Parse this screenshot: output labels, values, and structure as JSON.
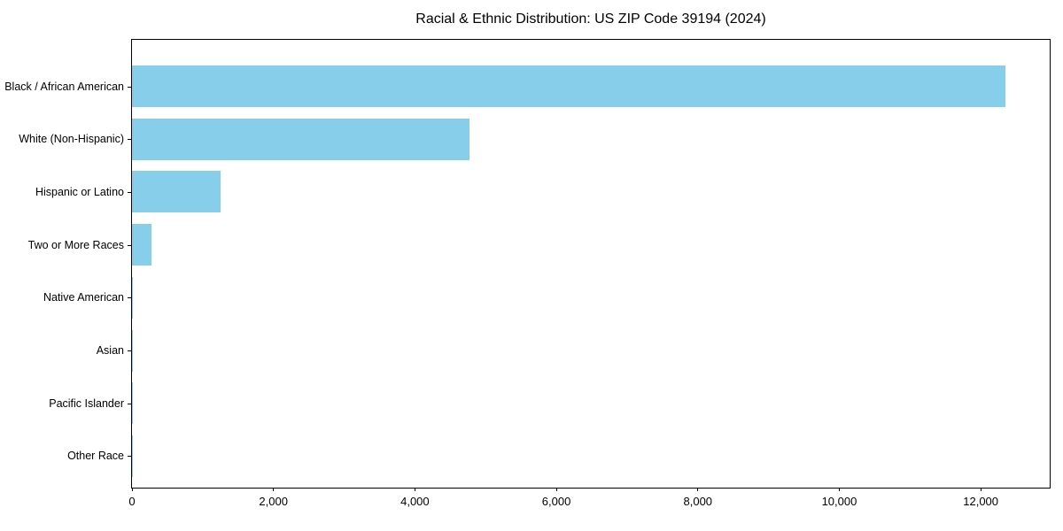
{
  "chart_data": {
    "type": "bar",
    "orientation": "horizontal",
    "title": "Racial & Ethnic Distribution: US ZIP Code 39194 (2024)",
    "categories": [
      "Black / African American",
      "White (Non-Hispanic)",
      "Hispanic or Latino",
      "Two or More Races",
      "Native American",
      "Asian",
      "Pacific Islander",
      "Other Race"
    ],
    "values": [
      12350,
      4775,
      1250,
      275,
      15,
      10,
      4,
      2
    ],
    "xlabel": "",
    "ylabel": "",
    "xlim": [
      0,
      12975
    ],
    "xticks": [
      0,
      2000,
      4000,
      6000,
      8000,
      10000,
      12000
    ],
    "xtick_labels": [
      "0",
      "2,000",
      "4,000",
      "6,000",
      "8,000",
      "10,000",
      "12,000"
    ],
    "bar_color": "#87CEEB",
    "axis_color": "#000000",
    "background_color": "#ffffff",
    "grid": false,
    "legend": null
  }
}
